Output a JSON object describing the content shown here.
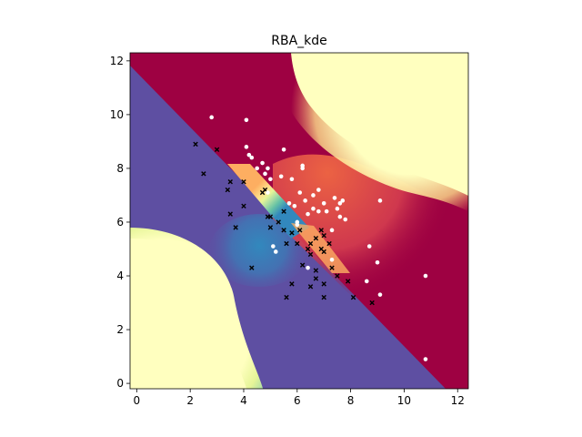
{
  "chart_data": {
    "type": "scatter",
    "title": "RBA_kde",
    "xlabel": "",
    "ylabel": "",
    "xlim": [
      -0.25,
      12.4
    ],
    "ylim": [
      -0.2,
      12.3
    ],
    "xticks": [
      0,
      2,
      4,
      6,
      8,
      10,
      12
    ],
    "yticks": [
      0,
      2,
      4,
      6,
      8,
      10,
      12
    ],
    "grid": false,
    "legend": "none",
    "colormap": "Spectral",
    "background": {
      "description": "kde-based decision surface: dark red above the diagonal boundary, purple below; pale-yellow regions top-right and bottom-left",
      "colors": {
        "dark_red": "#9e0142",
        "red": "#d53e4f",
        "orange": "#f46d43",
        "light_orange": "#fdae61",
        "pale_yellow": "#fee08b",
        "cream": "#ffffbf",
        "light_green": "#e6f598",
        "green": "#abdda4",
        "teal": "#66c2a5",
        "blue": "#3288bd",
        "purple": "#5e4fa2"
      }
    },
    "series": [
      {
        "marker": "x",
        "color": "#000000",
        "points": [
          [
            2.2,
            8.9
          ],
          [
            2.5,
            7.8
          ],
          [
            3.0,
            8.7
          ],
          [
            3.4,
            7.2
          ],
          [
            3.5,
            7.5
          ],
          [
            3.5,
            6.3
          ],
          [
            3.7,
            5.8
          ],
          [
            4.0,
            7.5
          ],
          [
            4.0,
            6.6
          ],
          [
            4.3,
            4.3
          ],
          [
            4.7,
            7.1
          ],
          [
            4.8,
            7.2
          ],
          [
            4.9,
            6.2
          ],
          [
            5.0,
            5.8
          ],
          [
            5.0,
            6.2
          ],
          [
            5.3,
            6.0
          ],
          [
            5.5,
            6.4
          ],
          [
            5.5,
            5.7
          ],
          [
            5.6,
            5.2
          ],
          [
            5.6,
            3.2
          ],
          [
            5.8,
            5.6
          ],
          [
            5.8,
            3.7
          ],
          [
            6.0,
            5.2
          ],
          [
            6.1,
            5.7
          ],
          [
            6.2,
            4.4
          ],
          [
            6.4,
            5.0
          ],
          [
            6.5,
            5.2
          ],
          [
            6.5,
            4.8
          ],
          [
            6.5,
            3.6
          ],
          [
            6.7,
            5.4
          ],
          [
            6.7,
            4.2
          ],
          [
            6.7,
            3.9
          ],
          [
            6.9,
            5.7
          ],
          [
            6.9,
            5.0
          ],
          [
            7.0,
            5.5
          ],
          [
            7.0,
            4.9
          ],
          [
            7.0,
            3.7
          ],
          [
            7.0,
            3.2
          ],
          [
            7.2,
            5.2
          ],
          [
            7.3,
            4.3
          ],
          [
            7.5,
            4.0
          ],
          [
            7.9,
            3.8
          ],
          [
            8.1,
            3.2
          ],
          [
            8.8,
            3.0
          ]
        ]
      },
      {
        "marker": "o",
        "color": "#ffffff",
        "points": [
          [
            2.8,
            9.9
          ],
          [
            4.1,
            9.8
          ],
          [
            4.1,
            8.8
          ],
          [
            4.2,
            8.5
          ],
          [
            4.3,
            8.4
          ],
          [
            4.5,
            8.0
          ],
          [
            4.7,
            8.2
          ],
          [
            4.8,
            7.8
          ],
          [
            4.9,
            8.0
          ],
          [
            4.9,
            7.1
          ],
          [
            5.0,
            7.6
          ],
          [
            5.1,
            5.1
          ],
          [
            5.2,
            4.9
          ],
          [
            5.4,
            7.7
          ],
          [
            5.5,
            8.7
          ],
          [
            5.7,
            6.7
          ],
          [
            5.8,
            7.6
          ],
          [
            5.9,
            6.6
          ],
          [
            6.0,
            6.0
          ],
          [
            6.0,
            5.9
          ],
          [
            6.1,
            7.1
          ],
          [
            6.2,
            8.1
          ],
          [
            6.2,
            8.0
          ],
          [
            6.3,
            6.8
          ],
          [
            6.4,
            6.3
          ],
          [
            6.4,
            4.3
          ],
          [
            6.6,
            7.0
          ],
          [
            6.6,
            6.5
          ],
          [
            6.8,
            7.2
          ],
          [
            6.8,
            6.4
          ],
          [
            7.0,
            6.7
          ],
          [
            7.1,
            6.4
          ],
          [
            7.3,
            5.7
          ],
          [
            7.3,
            4.6
          ],
          [
            7.4,
            6.9
          ],
          [
            7.5,
            6.5
          ],
          [
            7.6,
            6.7
          ],
          [
            7.6,
            6.2
          ],
          [
            7.7,
            6.8
          ],
          [
            7.8,
            6.1
          ],
          [
            8.6,
            3.8
          ],
          [
            8.7,
            5.1
          ],
          [
            9.0,
            4.5
          ],
          [
            9.1,
            3.3
          ],
          [
            9.1,
            6.8
          ],
          [
            10.8,
            4.0
          ],
          [
            10.8,
            0.9
          ]
        ]
      }
    ]
  }
}
